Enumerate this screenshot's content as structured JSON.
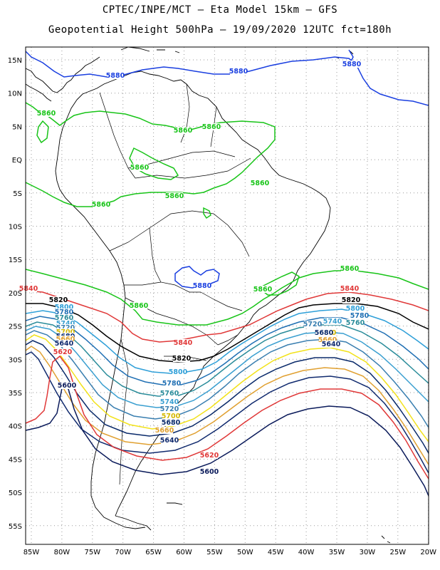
{
  "header": {
    "line1": "CPTEC/INPE/MCT –  Eta Model 15km – GFS",
    "line2": "Geopotential Height 500hPa – 19/09/2020 12UTC fct=180h"
  },
  "axes": {
    "lat_labels": [
      "15N",
      "10N",
      "5N",
      "EQ",
      "5S",
      "10S",
      "15S",
      "20S",
      "25S",
      "30S",
      "35S",
      "40S",
      "45S",
      "50S",
      "55S"
    ],
    "lon_labels": [
      "85W",
      "80W",
      "75W",
      "70W",
      "65W",
      "60W",
      "55W",
      "50W",
      "45W",
      "40W",
      "35W",
      "30W",
      "25W",
      "20W"
    ]
  },
  "colors": {
    "c5880": "#1a3fe0",
    "c5860": "#18c418",
    "c5840": "#e03838",
    "c5820": "#000000",
    "c5800": "#2e9fd8",
    "c5780": "#1f6fb3",
    "c5760": "#2a8c9a",
    "c5740": "#3a9fd0",
    "c5720": "#3a7fb0",
    "c5700": "#f2e21a",
    "c5680": "#0a2a6a",
    "c5660": "#e0a030",
    "c5640": "#102a6e",
    "c5620": "#e03838",
    "c5600": "#0a1a5a",
    "coast": "#000000",
    "grid": "#9a9a9a"
  },
  "contour_labels": [
    {
      "text": "5880",
      "color": "#1a3fe0"
    },
    {
      "text": "5880",
      "color": "#1a3fe0"
    },
    {
      "text": "5880",
      "color": "#1a3fe0"
    },
    {
      "text": "5880",
      "color": "#1a3fe0"
    },
    {
      "text": "5860",
      "color": "#18c418"
    },
    {
      "text": "5860",
      "color": "#18c418"
    },
    {
      "text": "5860",
      "color": "#18c418"
    },
    {
      "text": "5860",
      "color": "#18c418"
    },
    {
      "text": "5860",
      "color": "#18c418"
    },
    {
      "text": "5860",
      "color": "#18c418"
    },
    {
      "text": "5860",
      "color": "#18c418"
    },
    {
      "text": "5860",
      "color": "#18c418"
    },
    {
      "text": "5860",
      "color": "#18c418"
    },
    {
      "text": "5860",
      "color": "#18c418"
    },
    {
      "text": "5840",
      "color": "#e03838"
    },
    {
      "text": "5840",
      "color": "#e03838"
    },
    {
      "text": "5840",
      "color": "#e03838"
    },
    {
      "text": "5820",
      "color": "#000000"
    },
    {
      "text": "5820",
      "color": "#000000"
    },
    {
      "text": "5820",
      "color": "#000000"
    },
    {
      "text": "5800",
      "color": "#2e9fd8"
    },
    {
      "text": "5800",
      "color": "#2e9fd8"
    },
    {
      "text": "5800",
      "color": "#2e9fd8"
    },
    {
      "text": "5780",
      "color": "#1f6fb3"
    },
    {
      "text": "5780",
      "color": "#1f6fb3"
    },
    {
      "text": "5780",
      "color": "#1f6fb3"
    },
    {
      "text": "5760",
      "color": "#2a8c9a"
    },
    {
      "text": "5760",
      "color": "#2a8c9a"
    },
    {
      "text": "5760",
      "color": "#2a8c9a"
    },
    {
      "text": "5740",
      "color": "#3a9fd0"
    },
    {
      "text": "5740",
      "color": "#3a9fd0"
    },
    {
      "text": "5740",
      "color": "#3a9fd0"
    },
    {
      "text": "5720",
      "color": "#3a7fb0"
    },
    {
      "text": "5720",
      "color": "#3a7fb0"
    },
    {
      "text": "5720",
      "color": "#3a7fb0"
    },
    {
      "text": "5700",
      "color": "#d4b800"
    },
    {
      "text": "5700",
      "color": "#d4b800"
    },
    {
      "text": "5700",
      "color": "#d4b800"
    },
    {
      "text": "5680",
      "color": "#0a2a6a"
    },
    {
      "text": "5680",
      "color": "#0a2a6a"
    },
    {
      "text": "5680",
      "color": "#0a2a6a"
    },
    {
      "text": "5660",
      "color": "#e0a030"
    },
    {
      "text": "5660",
      "color": "#e0a030"
    },
    {
      "text": "5660",
      "color": "#e0a030"
    },
    {
      "text": "5640",
      "color": "#102a6e"
    },
    {
      "text": "5640",
      "color": "#102a6e"
    },
    {
      "text": "5640",
      "color": "#102a6e"
    },
    {
      "text": "5620",
      "color": "#e03838"
    },
    {
      "text": "5620",
      "color": "#e03838"
    },
    {
      "text": "5600",
      "color": "#0a1a5a"
    },
    {
      "text": "5600",
      "color": "#0a1a5a"
    }
  ]
}
